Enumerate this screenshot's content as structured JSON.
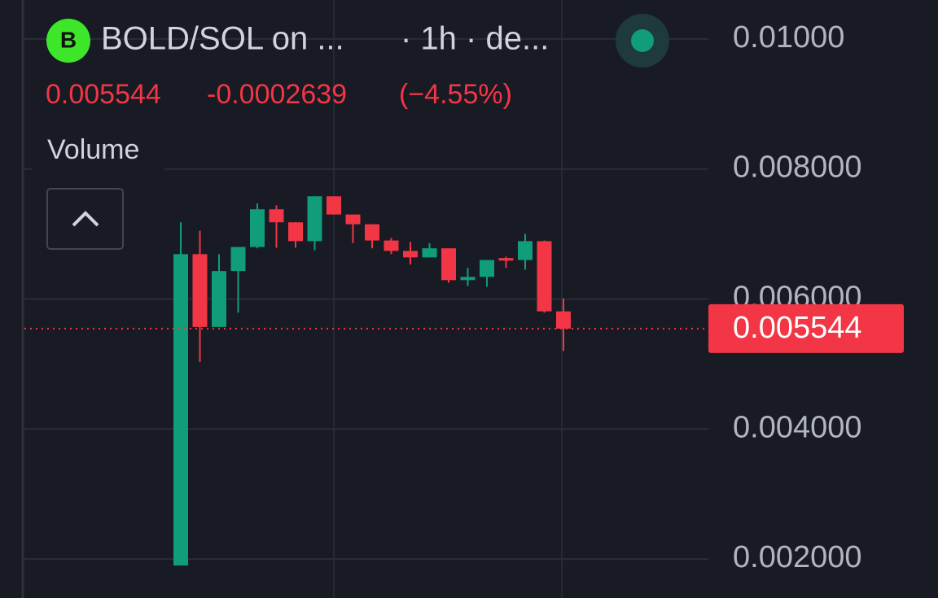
{
  "chart_data": {
    "type": "candlestick",
    "logo": "B",
    "title": "BOLD/SOL on ...",
    "subtitle": "· 1h · de...",
    "last_price": 0.005544,
    "change": -0.0002639,
    "change_pct": {
      "value": -4.55,
      "label": "(−4.55%)"
    },
    "indicator": "Volume",
    "up_color": "#0f9d7a",
    "down_color": "#f23645",
    "open": [
      0.0019,
      0.00669,
      0.00557,
      0.00643,
      0.0068,
      0.00738,
      0.00718,
      0.00689,
      0.00758,
      0.0073,
      0.00715,
      0.0069,
      0.00674,
      0.00664,
      0.00678,
      0.00629,
      0.00634,
      0.00663,
      0.0066,
      0.00689,
      0.00581
    ],
    "high": [
      0.00718,
      0.00705,
      0.00669,
      0.0068,
      0.00747,
      0.00744,
      0.00718,
      0.00758,
      0.00758,
      0.0073,
      0.00715,
      0.00694,
      0.00688,
      0.00686,
      0.00678,
      0.00648,
      0.0066,
      0.00665,
      0.007,
      0.0069,
      0.00601
    ],
    "low": [
      0.0019,
      0.00503,
      0.00557,
      0.00579,
      0.00678,
      0.00679,
      0.00679,
      0.00675,
      0.0073,
      0.00686,
      0.00678,
      0.00669,
      0.00653,
      0.00664,
      0.00625,
      0.0062,
      0.00619,
      0.00648,
      0.00645,
      0.00579,
      0.0052
    ],
    "close": [
      0.00669,
      0.00557,
      0.00643,
      0.0068,
      0.00738,
      0.00718,
      0.00689,
      0.00758,
      0.0073,
      0.00715,
      0.0069,
      0.00674,
      0.00664,
      0.00678,
      0.00629,
      0.00634,
      0.0066,
      0.00659,
      0.00689,
      0.00581,
      0.005544
    ],
    "ylim": [
      0.0014,
      0.0106
    ],
    "yticks": [
      {
        "value": 0.01,
        "label": "0.01000"
      },
      {
        "value": 0.008,
        "label": "0.008000"
      },
      {
        "value": 0.006,
        "label": "0.006000"
      },
      {
        "value": 0.004,
        "label": "0.004000"
      },
      {
        "value": 0.002,
        "label": "0.002000"
      }
    ],
    "grid": true
  }
}
